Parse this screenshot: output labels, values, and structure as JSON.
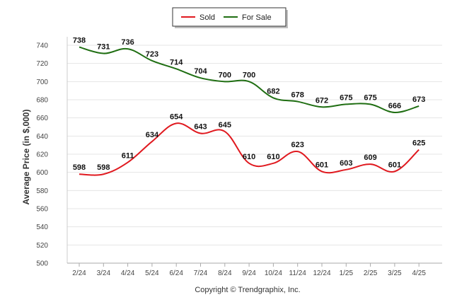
{
  "chart_data": {
    "type": "line",
    "categories": [
      "2/24",
      "3/24",
      "4/24",
      "5/24",
      "6/24",
      "7/24",
      "8/24",
      "9/24",
      "10/24",
      "11/24",
      "12/24",
      "1/25",
      "2/25",
      "3/25",
      "4/25"
    ],
    "series": [
      {
        "name": "Sold",
        "color": "#e0191f",
        "values": [
          598,
          598,
          611,
          634,
          654,
          643,
          645,
          610,
          610,
          623,
          601,
          603,
          609,
          601,
          625
        ]
      },
      {
        "name": "For Sale",
        "color": "#1f6e12",
        "values": [
          738,
          731,
          736,
          723,
          714,
          704,
          700,
          700,
          682,
          678,
          672,
          675,
          675,
          666,
          673
        ]
      }
    ],
    "ylabel": "Average Price (in $,000)",
    "xlabel": "",
    "ylim": [
      500,
      740
    ],
    "yticks": [
      500,
      520,
      540,
      560,
      580,
      600,
      620,
      640,
      660,
      680,
      700,
      720,
      740
    ],
    "grid": true,
    "legend": "top-center"
  },
  "footer": {
    "copyright": "Copyright © Trendgraphix, Inc."
  }
}
